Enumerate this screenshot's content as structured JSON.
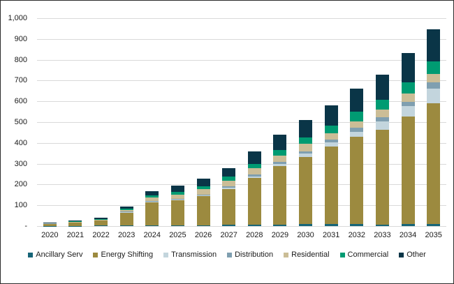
{
  "chart_data": {
    "type": "bar",
    "stacked": true,
    "title": "",
    "xlabel": "",
    "ylabel": "",
    "categories": [
      "2020",
      "2021",
      "2022",
      "2023",
      "2024",
      "2025",
      "2026",
      "2027",
      "2028",
      "2029",
      "2030",
      "2031",
      "2032",
      "2033",
      "2034",
      "2035"
    ],
    "series": [
      {
        "name": "Ancillary Serv",
        "color": "#176578",
        "values": [
          1,
          1,
          2,
          3,
          4,
          4,
          5,
          6,
          7,
          8,
          9,
          9,
          9,
          8,
          9,
          10
        ]
      },
      {
        "name": "Energy Shifting",
        "color": "#9c8a3f",
        "values": [
          10,
          15,
          24,
          60,
          110,
          120,
          138,
          172,
          224,
          281,
          324,
          374,
          422,
          454,
          517,
          582
        ]
      },
      {
        "name": "Transmission",
        "color": "#c3d5dd",
        "values": [
          1,
          1,
          1,
          3,
          4,
          4,
          4,
          8,
          9,
          10,
          15,
          20,
          22,
          43,
          50,
          70
        ]
      },
      {
        "name": "Distribution",
        "color": "#7f9fb0",
        "values": [
          0,
          1,
          1,
          3,
          3,
          4,
          4,
          7,
          10,
          10,
          11,
          14,
          19,
          20,
          22,
          30
        ]
      },
      {
        "name": "Residential",
        "color": "#cbbd96",
        "values": [
          1,
          2,
          3,
          9,
          17,
          20,
          26,
          26,
          28,
          31,
          36,
          31,
          33,
          36,
          41,
          41
        ]
      },
      {
        "name": "Commercial",
        "color": "#009b72",
        "values": [
          1,
          3,
          4,
          7,
          9,
          12,
          13,
          21,
          22,
          25,
          32,
          35,
          45,
          47,
          53,
          59
        ]
      },
      {
        "name": "Other",
        "color": "#0a3547",
        "values": [
          2,
          3,
          4,
          8,
          20,
          31,
          38,
          38,
          58,
          75,
          83,
          97,
          110,
          122,
          139,
          153
        ]
      }
    ],
    "ylim": [
      0,
      1000
    ],
    "ytick_interval": 100,
    "ytick_labels": [
      "-",
      "100",
      "200",
      "300",
      "400",
      "500",
      "600",
      "700",
      "800",
      "900",
      "1,000"
    ],
    "grid": true,
    "gridline_color": "#d9d9d9",
    "legend_position": "bottom",
    "background_color": "#ffffff",
    "border_color": "#2b2b2b"
  }
}
